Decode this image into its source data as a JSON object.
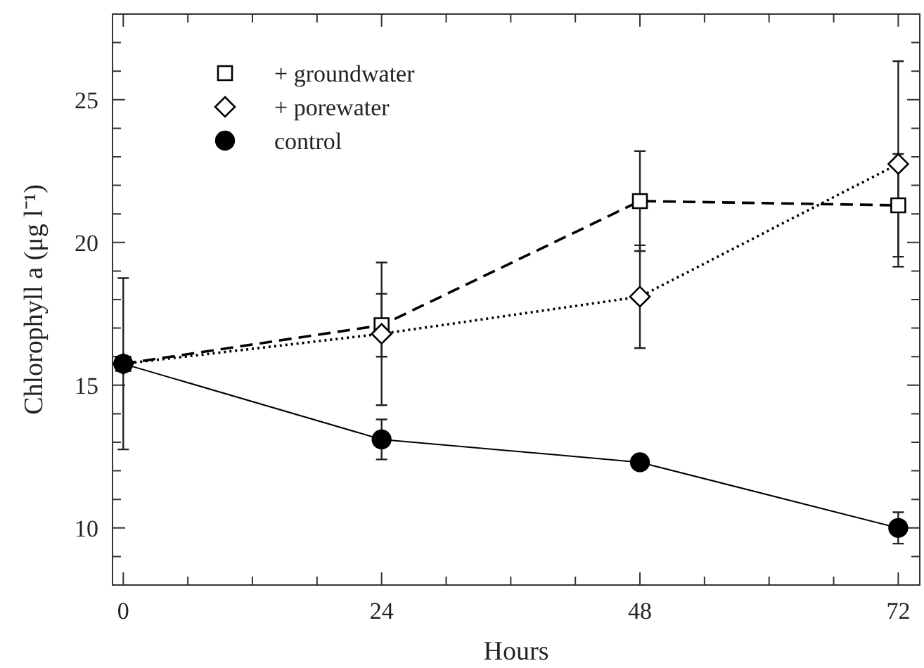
{
  "chart_data": {
    "type": "line",
    "xlabel": "Hours",
    "ylabel": "Chlorophyll a (μg l⁻¹)",
    "x": [
      0,
      24,
      48,
      72
    ],
    "xlim": [
      -1,
      74
    ],
    "xticks": [
      0,
      {
        "value": 6,
        "label": null
      },
      {
        "value": 12,
        "label": null
      },
      {
        "value": 18,
        "label": null
      },
      24,
      {
        "value": 30,
        "label": null
      },
      {
        "value": 36,
        "label": null
      },
      {
        "value": 42,
        "label": null
      },
      48,
      {
        "value": 54,
        "label": null
      },
      {
        "value": 60,
        "label": null
      },
      {
        "value": 66,
        "label": null
      },
      72
    ],
    "ylim": [
      8,
      28
    ],
    "yticks": [
      {
        "value": 9,
        "label": null
      },
      10,
      {
        "value": 11,
        "label": null
      },
      {
        "value": 12,
        "label": null
      },
      {
        "value": 13,
        "label": null
      },
      {
        "value": 14,
        "label": null
      },
      15,
      {
        "value": 16,
        "label": null
      },
      {
        "value": 17,
        "label": null
      },
      {
        "value": 18,
        "label": null
      },
      {
        "value": 19,
        "label": null
      },
      20,
      {
        "value": 21,
        "label": null
      },
      {
        "value": 22,
        "label": null
      },
      {
        "value": 23,
        "label": null
      },
      {
        "value": 24,
        "label": null
      },
      25,
      {
        "value": 26,
        "label": null
      },
      {
        "value": 27,
        "label": null
      }
    ],
    "legend": "top left",
    "grid": false,
    "series": [
      {
        "name": "+ groundwater",
        "color": "#000000",
        "marker": "square",
        "line_style": "dashed",
        "values": [
          15.75,
          17.1,
          21.45,
          21.3
        ],
        "errors": [
          null,
          1.1,
          1.75,
          1.8
        ]
      },
      {
        "name": "+ porewater",
        "color": "#000000",
        "marker": "diamond",
        "line_style": "dotted",
        "values": [
          15.75,
          16.8,
          18.1,
          22.75
        ],
        "errors": [
          null,
          2.5,
          1.8,
          3.6
        ]
      },
      {
        "name": "control",
        "color": "#000000",
        "marker": "circle",
        "line_style": "solid",
        "values": [
          15.75,
          13.1,
          12.3,
          10.0
        ],
        "errors": [
          3.0,
          0.7,
          null,
          0.55
        ]
      }
    ]
  }
}
